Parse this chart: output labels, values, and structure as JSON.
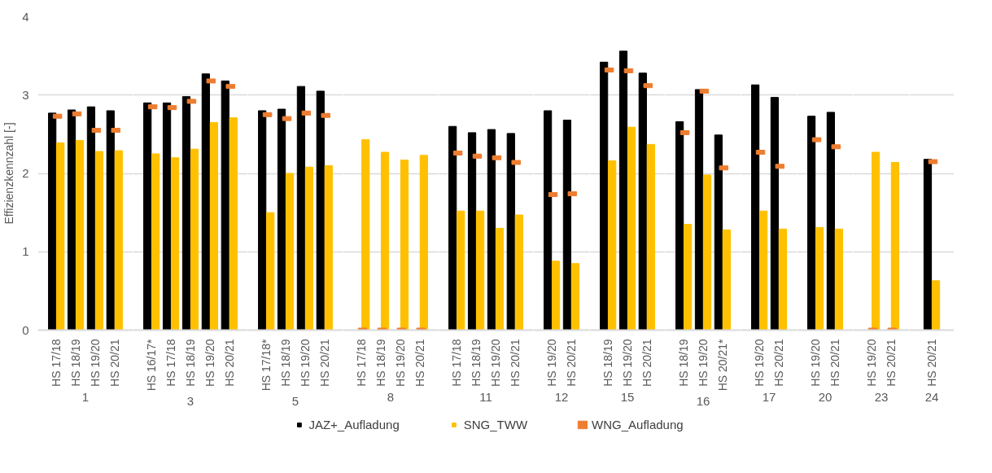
{
  "chart_data": [
    {
      "type": "bar",
      "xlabel": "1",
      "ylabel": "Effizienzkennzahl [-]",
      "categories": [
        "HS 17/18",
        "HS 18/19",
        "HS 19/20",
        "HS 20/21"
      ],
      "ylim": [
        0,
        4
      ],
      "yticks": [
        0,
        1,
        2,
        3,
        4
      ],
      "grid": "y",
      "legend": "bottom",
      "series": [
        {
          "name": "JAZ+_Aufladung",
          "color": "#000000",
          "values": [
            2.77,
            2.81,
            2.85,
            2.8
          ]
        },
        {
          "name": "SNG_TWW",
          "color": "#ffc000",
          "values": [
            2.39,
            2.42,
            2.28,
            2.29
          ]
        },
        {
          "name": "WNG_Aufladung",
          "type": "scatter",
          "marker": "square",
          "color": "#ed7d31",
          "values": [
            2.73,
            2.76,
            2.55,
            2.55
          ]
        }
      ]
    },
    {
      "type": "bar",
      "xlabel": "3",
      "categories": [
        "HS 16/17*",
        "HS 17/18",
        "HS 18/19",
        "HS 19/20",
        "HS 20/21"
      ],
      "ylim": [
        0,
        4
      ],
      "yticks": [
        0,
        1,
        2,
        3,
        4
      ],
      "grid": "y",
      "tick_labels": "x",
      "series": [
        {
          "color": "#000000",
          "values": [
            2.9,
            2.9,
            2.98,
            3.27,
            3.18
          ]
        },
        {
          "color": "#ffc000",
          "values": [
            2.25,
            2.2,
            2.31,
            2.65,
            2.71
          ]
        },
        {
          "type": "scatter",
          "marker": "square",
          "color": "#ed7d31",
          "values": [
            2.85,
            2.84,
            2.92,
            3.18,
            3.11
          ]
        }
      ]
    },
    {
      "type": "bar",
      "xlabel": "5",
      "categories": [
        "HS 17/18*",
        "HS 18/19",
        "HS 19/20",
        "HS 20/21"
      ],
      "ylim": [
        0,
        4
      ],
      "yticks": [
        0,
        1,
        2,
        3,
        4
      ],
      "grid": "y",
      "tick_labels": "x",
      "series": [
        {
          "color": "#000000",
          "values": [
            2.8,
            2.82,
            3.11,
            3.05
          ]
        },
        {
          "color": "#ffc000",
          "values": [
            1.5,
            2.0,
            2.08,
            2.1
          ]
        },
        {
          "type": "scatter",
          "marker": "square",
          "color": "#ed7d31",
          "values": [
            2.75,
            2.7,
            2.77,
            2.74
          ]
        }
      ]
    },
    {
      "type": "bar",
      "xlabel": "8",
      "categories": [
        "HS 17/18",
        "HS 18/19",
        "HS 19/20",
        "HS 20/21"
      ],
      "ylim": [
        0,
        4
      ],
      "yticks": [
        0,
        1,
        2,
        3,
        4
      ],
      "grid": "y",
      "tick_labels": "x",
      "series": [
        {
          "color": "#000000",
          "values": [
            null,
            null,
            null,
            null
          ]
        },
        {
          "color": "#ffc000",
          "values": [
            2.43,
            2.27,
            2.17,
            2.23
          ]
        },
        {
          "type": "scatter",
          "marker": "square",
          "color": "#ed7d31",
          "values": [
            0,
            0,
            0,
            0
          ]
        }
      ]
    },
    {
      "type": "bar",
      "xlabel": "11",
      "categories": [
        "HS 17/18",
        "HS 18/19",
        "HS 19/20",
        "HS 20/21"
      ],
      "ylim": [
        0,
        4
      ],
      "yticks": [
        0,
        1,
        2,
        3,
        4
      ],
      "grid": "y",
      "tick_labels": "x",
      "series": [
        {
          "color": "#000000",
          "values": [
            2.6,
            2.52,
            2.56,
            2.51
          ]
        },
        {
          "color": "#ffc000",
          "values": [
            1.52,
            1.52,
            1.3,
            1.47
          ]
        },
        {
          "type": "scatter",
          "marker": "square",
          "color": "#ed7d31",
          "values": [
            2.26,
            2.22,
            2.2,
            2.14
          ]
        }
      ]
    },
    {
      "type": "bar",
      "xlabel": "12",
      "categories": [
        "HS 19/20",
        "HS 20/21"
      ],
      "ylim": [
        0,
        4
      ],
      "yticks": [
        0,
        1,
        2,
        3,
        4
      ],
      "grid": "y",
      "tick_labels": "x",
      "series": [
        {
          "color": "#000000",
          "values": [
            2.8,
            2.68
          ]
        },
        {
          "color": "#ffc000",
          "values": [
            0.88,
            0.85
          ]
        },
        {
          "type": "scatter",
          "marker": "square",
          "color": "#ed7d31",
          "values": [
            1.73,
            1.74
          ]
        }
      ]
    },
    {
      "type": "bar",
      "xlabel": "15",
      "categories": [
        "HS 18/19",
        "HS 19/20",
        "HS 20/21"
      ],
      "ylim": [
        0,
        4
      ],
      "yticks": [
        0,
        1,
        2,
        3,
        4
      ],
      "grid": "y",
      "tick_labels": "x",
      "series": [
        {
          "color": "#000000",
          "values": [
            3.42,
            3.56,
            3.28
          ]
        },
        {
          "color": "#ffc000",
          "values": [
            2.16,
            2.59,
            2.37
          ]
        },
        {
          "type": "scatter",
          "marker": "square",
          "color": "#ed7d31",
          "values": [
            3.32,
            3.31,
            3.12
          ]
        }
      ]
    },
    {
      "type": "bar",
      "xlabel": "16",
      "categories": [
        "HS 18/19",
        "HS 19/20",
        "HS 20/21*"
      ],
      "ylim": [
        0,
        4
      ],
      "yticks": [
        0,
        1,
        2,
        3,
        4
      ],
      "grid": "y",
      "tick_labels": "x",
      "series": [
        {
          "color": "#000000",
          "values": [
            2.66,
            3.07,
            2.49
          ]
        },
        {
          "color": "#ffc000",
          "values": [
            1.35,
            1.98,
            1.28
          ]
        },
        {
          "type": "scatter",
          "marker": "square",
          "color": "#ed7d31",
          "values": [
            2.52,
            3.05,
            2.07
          ]
        }
      ]
    },
    {
      "type": "bar",
      "xlabel": "17",
      "categories": [
        "HS 19/20",
        "HS 20/21"
      ],
      "ylim": [
        0,
        4
      ],
      "yticks": [
        0,
        1,
        2,
        3,
        4
      ],
      "grid": "y",
      "tick_labels": "x",
      "series": [
        {
          "color": "#000000",
          "values": [
            3.13,
            2.97
          ]
        },
        {
          "color": "#ffc000",
          "values": [
            1.52,
            1.29
          ]
        },
        {
          "type": "scatter",
          "marker": "square",
          "color": "#ed7d31",
          "values": [
            2.27,
            2.09
          ]
        }
      ]
    },
    {
      "type": "bar",
      "xlabel": "20",
      "categories": [
        "HS 19/20",
        "HS 20/21"
      ],
      "ylim": [
        0,
        4
      ],
      "yticks": [
        0,
        1,
        2,
        3,
        4
      ],
      "grid": "y",
      "tick_labels": "x",
      "series": [
        {
          "color": "#000000",
          "values": [
            2.73,
            2.78
          ]
        },
        {
          "color": "#ffc000",
          "values": [
            1.31,
            1.29
          ]
        },
        {
          "type": "scatter",
          "marker": "square",
          "color": "#ed7d31",
          "values": [
            2.43,
            2.34
          ]
        }
      ]
    },
    {
      "type": "bar",
      "xlabel": "23",
      "categories": [
        "HS 19/20",
        "HS 20/21"
      ],
      "ylim": [
        0,
        4
      ],
      "yticks": [
        0,
        1,
        2,
        3,
        4
      ],
      "grid": "y",
      "tick_labels": "x",
      "series": [
        {
          "color": "#000000",
          "values": [
            null,
            null
          ]
        },
        {
          "color": "#ffc000",
          "values": [
            2.27,
            2.14
          ]
        },
        {
          "type": "scatter",
          "marker": "square",
          "color": "#ed7d31",
          "values": [
            0,
            0
          ]
        }
      ]
    },
    {
      "type": "bar",
      "xlabel": "24",
      "categories": [
        "HS 20/21"
      ],
      "ylim": [
        0,
        4
      ],
      "yticks": [
        0,
        1,
        2,
        3,
        4
      ],
      "grid": "y",
      "tick_labels": "x",
      "series": [
        {
          "color": "#000000",
          "values": [
            2.18
          ]
        },
        {
          "color": "#ffc000",
          "values": [
            0.63
          ]
        },
        {
          "type": "scatter",
          "marker": "square",
          "color": "#ed7d31",
          "values": [
            2.15
          ]
        }
      ]
    }
  ]
}
